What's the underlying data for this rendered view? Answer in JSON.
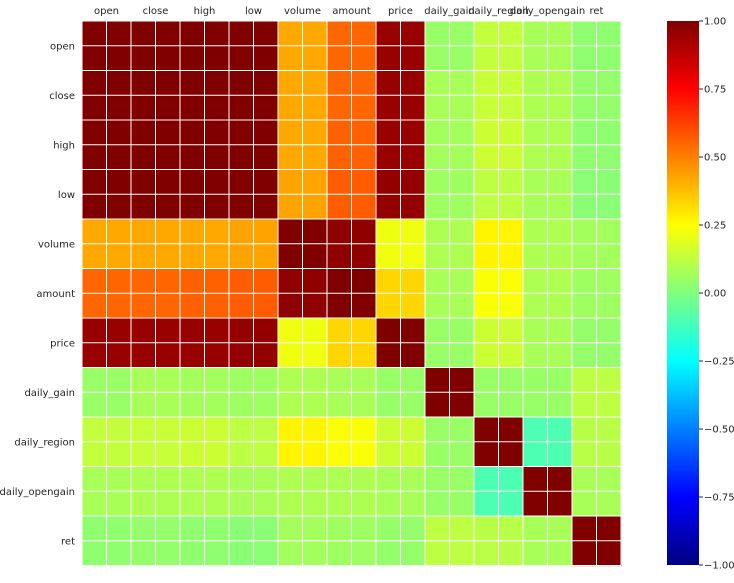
{
  "chart_data": {
    "type": "heatmap",
    "title": "",
    "colormap": "jet",
    "grid": true,
    "labels": [
      "open",
      "close",
      "high",
      "low",
      "volume",
      "amount",
      "price",
      "daily_gain",
      "daily_region",
      "daily_opengain",
      "ret"
    ],
    "values": [
      [
        1.0,
        1.0,
        1.0,
        1.0,
        0.42,
        0.55,
        0.95,
        0.05,
        0.13,
        0.08,
        0.03
      ],
      [
        1.0,
        1.0,
        1.0,
        1.0,
        0.42,
        0.55,
        0.95,
        0.08,
        0.14,
        0.09,
        0.04
      ],
      [
        1.0,
        1.0,
        1.0,
        1.0,
        0.42,
        0.56,
        0.95,
        0.07,
        0.15,
        0.09,
        0.03
      ],
      [
        1.0,
        1.0,
        1.0,
        1.0,
        0.43,
        0.57,
        0.96,
        0.06,
        0.12,
        0.08,
        0.02
      ],
      [
        0.42,
        0.42,
        0.42,
        0.43,
        1.0,
        0.97,
        0.22,
        0.09,
        0.27,
        0.09,
        0.07
      ],
      [
        0.55,
        0.55,
        0.56,
        0.57,
        0.97,
        1.0,
        0.33,
        0.08,
        0.24,
        0.09,
        0.06
      ],
      [
        0.95,
        0.95,
        0.95,
        0.96,
        0.22,
        0.33,
        1.0,
        0.05,
        0.15,
        0.08,
        0.04
      ],
      [
        0.05,
        0.08,
        0.07,
        0.06,
        0.09,
        0.08,
        0.05,
        1.0,
        0.05,
        0.05,
        0.12
      ],
      [
        0.13,
        0.14,
        0.15,
        0.12,
        0.27,
        0.24,
        0.15,
        0.05,
        1.0,
        -0.1,
        0.11
      ],
      [
        0.08,
        0.09,
        0.09,
        0.08,
        0.09,
        0.09,
        0.08,
        0.05,
        -0.1,
        1.0,
        0.08
      ],
      [
        0.03,
        0.04,
        0.03,
        0.02,
        0.07,
        0.06,
        0.04,
        0.12,
        0.11,
        0.08,
        1.0
      ]
    ],
    "colorbar": {
      "vmin": -1.0,
      "vmax": 1.0,
      "ticks": [
        -1.0,
        -0.75,
        -0.5,
        -0.25,
        0.0,
        0.25,
        0.5,
        0.75,
        1.0
      ],
      "tick_labels": [
        "−1.00",
        "−0.75",
        "−0.50",
        "−0.25",
        "0.00",
        "0.25",
        "0.50",
        "0.75",
        "1.00"
      ]
    }
  }
}
